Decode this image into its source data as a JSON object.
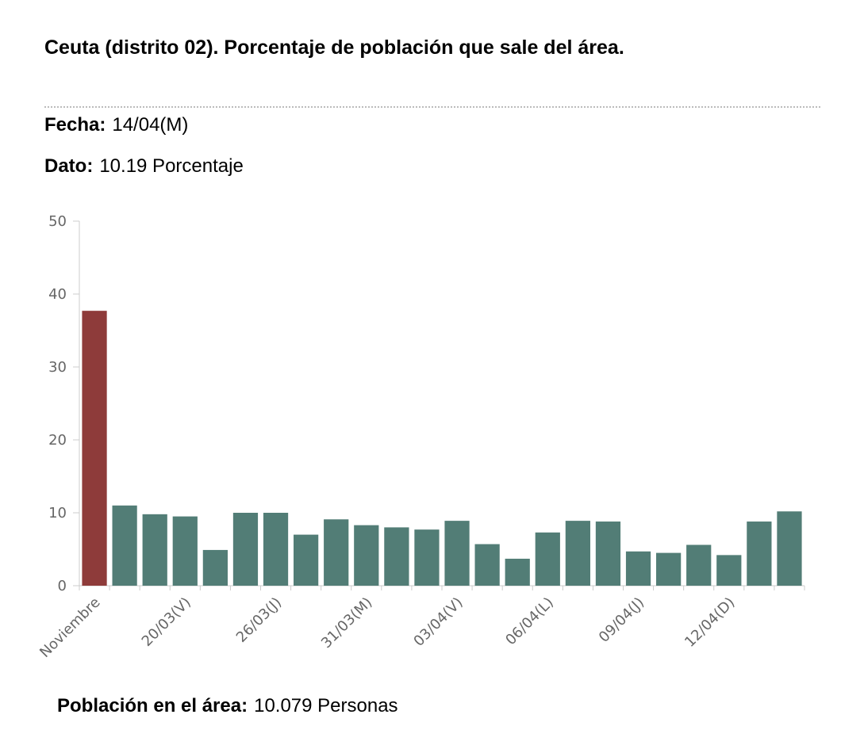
{
  "header": {
    "title": "Ceuta (distrito 02). Porcentaje de población que sale del área."
  },
  "info": {
    "fecha_label": "Fecha:",
    "fecha": "14/04(M)",
    "dato_label": "Dato:",
    "dato": "10.19 Porcentaje"
  },
  "footer": {
    "label": "Población en el área:",
    "value": "10.079 Personas"
  },
  "chart_data": {
    "type": "bar",
    "categories": [
      "Noviembre",
      null,
      null,
      "20/03(V)",
      null,
      null,
      "26/03(J)",
      null,
      null,
      "31/03(M)",
      null,
      null,
      "03/04(V)",
      null,
      null,
      "06/04(L)",
      null,
      null,
      "09/04(J)",
      null,
      null,
      "12/04(D)",
      null,
      null
    ],
    "values": [
      37.7,
      11.0,
      9.8,
      9.5,
      4.9,
      10.0,
      10.0,
      7.0,
      9.1,
      8.3,
      8.0,
      7.7,
      8.9,
      5.7,
      3.7,
      7.3,
      8.9,
      8.8,
      4.7,
      4.5,
      5.6,
      4.2,
      8.8,
      10.19
    ],
    "colors": [
      "#8e3b3a",
      "#527d76",
      "#527d76",
      "#527d76",
      "#527d76",
      "#527d76",
      "#527d76",
      "#527d76",
      "#527d76",
      "#527d76",
      "#527d76",
      "#527d76",
      "#527d76",
      "#527d76",
      "#527d76",
      "#527d76",
      "#527d76",
      "#527d76",
      "#527d76",
      "#527d76",
      "#527d76",
      "#527d76",
      "#527d76",
      "#527d76"
    ],
    "ylim": [
      0,
      50
    ],
    "yticks": [
      0,
      10,
      20,
      30,
      40,
      50
    ],
    "grid": false
  }
}
